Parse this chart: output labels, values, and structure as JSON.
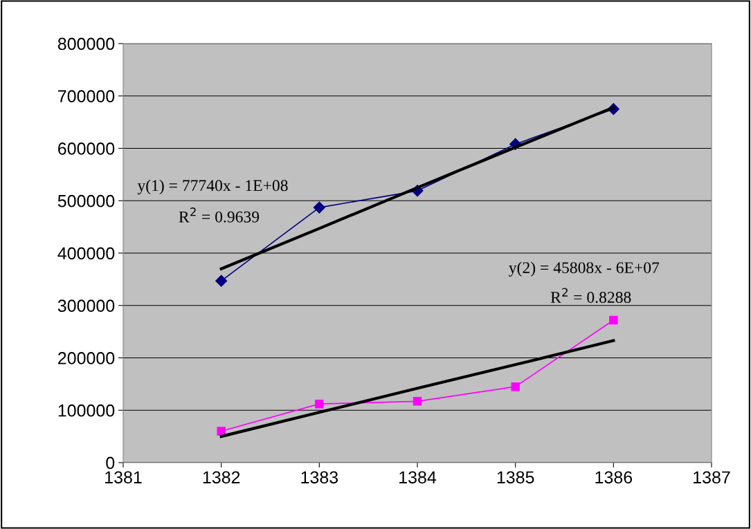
{
  "chart_data": {
    "type": "line",
    "x": [
      1382,
      1383,
      1384,
      1385,
      1386
    ],
    "series": [
      {
        "color": "#000080",
        "marker": "diamond",
        "values": [
          347000,
          487000,
          519000,
          608000,
          675000
        ]
      },
      {
        "color": "#ff00ff",
        "marker": "square",
        "values": [
          60000,
          112000,
          117000,
          145000,
          272000
        ]
      },
      {
        "type": "line",
        "color": "#000000",
        "marker": "none",
        "values": [
          370000,
          447000,
          525000,
          602000,
          678000
        ]
      },
      {
        "type": "line",
        "color": "#000000",
        "marker": "none",
        "values": [
          50000,
          96000,
          142000,
          187000,
          233000
        ]
      }
    ],
    "xlim": [
      1381,
      1387
    ],
    "xticks": [
      1381,
      1382,
      1383,
      1384,
      1385,
      1386,
      1387
    ],
    "ylim": [
      0,
      800000
    ],
    "yticks": [
      0,
      100000,
      200000,
      300000,
      400000,
      500000,
      600000,
      700000,
      800000
    ],
    "grid": "y",
    "legend": false,
    "line_style": "solid",
    "annotations": [
      "y(1) = 77740x - 1E+08",
      "R$^{2}$ = 0.9639",
      "y(2) = 45808x - 6E+07",
      "R$^{2}$ = 0.8288"
    ]
  }
}
